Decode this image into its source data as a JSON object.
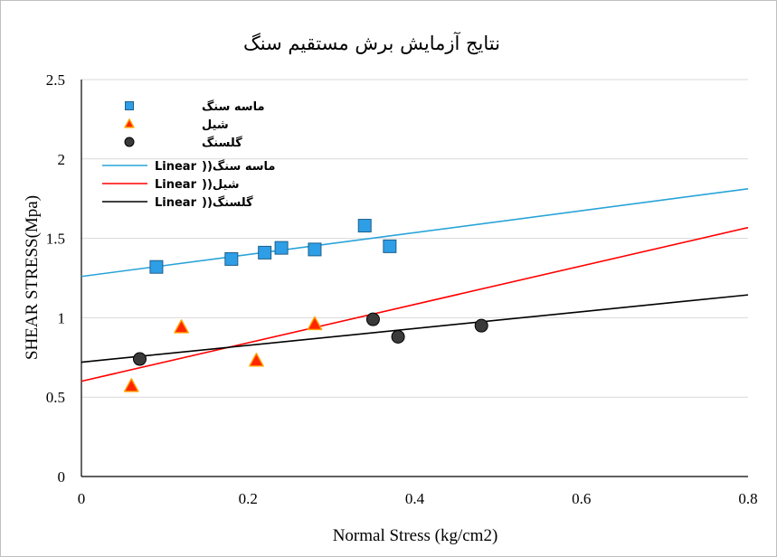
{
  "chart_data": {
    "type": "scatter",
    "title": "نتایج آزمایش برش مستقیم سنگ",
    "xlabel": "Normal Stress (kg/cm2)",
    "ylabel": "SHEAR STRESS(Mpa)",
    "xlim": [
      0,
      0.8
    ],
    "ylim": [
      0,
      2.5
    ],
    "x_ticks": [
      "0",
      "0.2",
      "0.4",
      "0.6",
      "0.8"
    ],
    "y_ticks": [
      "0",
      "0.5",
      "1",
      "1.5",
      "2",
      "2.5"
    ],
    "grid": "horizontal",
    "legend_position": "top-left",
    "series": [
      {
        "name": "ماسه سنگ",
        "marker": "square",
        "color": "#2e9ee6",
        "points": [
          [
            0.09,
            1.32
          ],
          [
            0.18,
            1.37
          ],
          [
            0.22,
            1.41
          ],
          [
            0.24,
            1.44
          ],
          [
            0.28,
            1.43
          ],
          [
            0.34,
            1.58
          ],
          [
            0.37,
            1.45
          ]
        ]
      },
      {
        "name": "شیل",
        "marker": "triangle",
        "color": "#ff2600",
        "points": [
          [
            0.06,
            0.57
          ],
          [
            0.12,
            0.94
          ],
          [
            0.21,
            0.73
          ],
          [
            0.28,
            0.96
          ]
        ]
      },
      {
        "name": "گلسنگ",
        "marker": "circle",
        "color": "#3a3a3a",
        "points": [
          [
            0.07,
            0.74
          ],
          [
            0.35,
            0.99
          ],
          [
            0.38,
            0.88
          ],
          [
            0.48,
            0.95
          ]
        ]
      }
    ],
    "trendlines": [
      {
        "name": "Linear (ماسه سنگ)",
        "label_latin": "Linear",
        "label_fa": "ماسه سنگ",
        "color": "#29a3d8",
        "intercept": 1.26,
        "slope": 0.69
      },
      {
        "name": "Linear (شیل)",
        "label_latin": "Linear",
        "label_fa": "شیل",
        "color": "#ff0000",
        "intercept": 0.6,
        "slope": 1.21
      },
      {
        "name": "Linear (گلسنگ)",
        "label_latin": "Linear",
        "label_fa": "گلسنگ",
        "color": "#000000",
        "intercept": 0.72,
        "slope": 0.53
      }
    ]
  }
}
